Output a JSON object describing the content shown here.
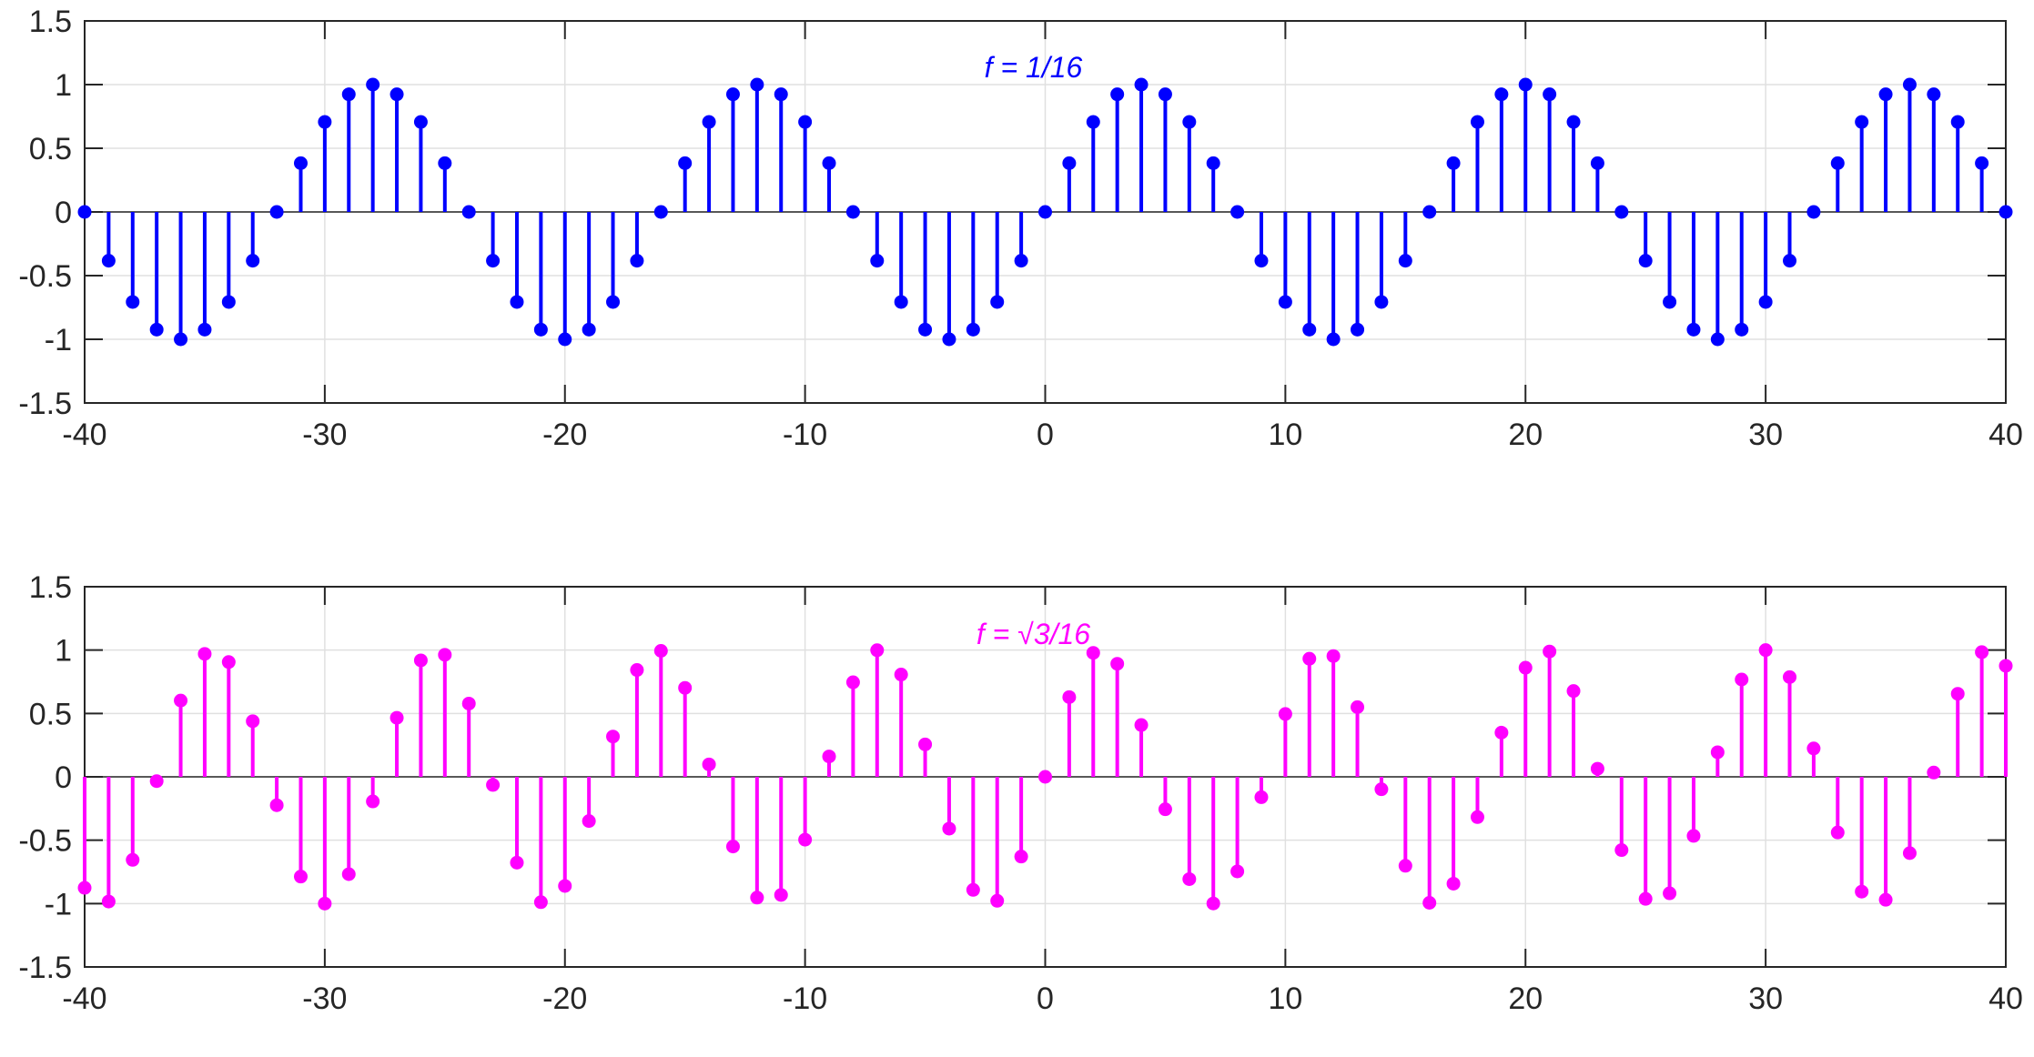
{
  "chart_data": [
    {
      "type": "stem",
      "title": "f = 1/16",
      "color": "#0000ff",
      "xlim": [
        -40,
        40
      ],
      "ylim": [
        -1.5,
        1.5
      ],
      "grid": true,
      "xticks": [
        "-40",
        "-30",
        "-20",
        "-10",
        "0",
        "10",
        "20",
        "30",
        "40"
      ],
      "yticks": [
        "-1.5",
        "-1",
        "-0.5",
        "0",
        "0.5",
        "1",
        "1.5"
      ],
      "x_start": -40,
      "values": [
        0,
        -0.383,
        -0.707,
        -0.924,
        -1,
        -0.924,
        -0.707,
        -0.383,
        0,
        0.383,
        0.707,
        0.924,
        1,
        0.924,
        0.707,
        0.383,
        0,
        -0.383,
        -0.707,
        -0.924,
        -1,
        -0.924,
        -0.707,
        -0.383,
        0,
        0.383,
        0.707,
        0.924,
        1,
        0.924,
        0.707,
        0.383,
        0,
        -0.383,
        -0.707,
        -0.924,
        -1,
        -0.924,
        -0.707,
        -0.383,
        0,
        0.383,
        0.707,
        0.924,
        1,
        0.924,
        0.707,
        0.383,
        0,
        -0.383,
        -0.707,
        -0.924,
        -1,
        -0.924,
        -0.707,
        -0.383,
        0,
        0.383,
        0.707,
        0.924,
        1,
        0.924,
        0.707,
        0.383,
        0,
        -0.383,
        -0.707,
        -0.924,
        -1,
        -0.924,
        -0.707,
        -0.383,
        0,
        0.383,
        0.707,
        0.924,
        1,
        0.924,
        0.707,
        0.383,
        0
      ]
    },
    {
      "type": "stem",
      "title": "f = √3/16",
      "color": "#ff00ff",
      "xlim": [
        -40,
        40
      ],
      "ylim": [
        -1.5,
        1.5
      ],
      "grid": true,
      "xticks": [
        "-40",
        "-30",
        "-20",
        "-10",
        "0",
        "10",
        "20",
        "30",
        "40"
      ],
      "yticks": [
        "-1.5",
        "-1",
        "-0.5",
        "0",
        "0.5",
        "1",
        "1.5"
      ],
      "x_start": -40,
      "values": [
        -0.876,
        -0.984,
        -0.655,
        -0.034,
        0.602,
        0.97,
        0.906,
        0.439,
        -0.224,
        -0.787,
        -1.0,
        -0.768,
        -0.194,
        0.466,
        0.919,
        0.963,
        0.578,
        -0.064,
        -0.677,
        -0.989,
        -0.861,
        -0.349,
        0.318,
        0.843,
        0.994,
        0.702,
        0.098,
        -0.55,
        -0.953,
        -0.932,
        -0.496,
        0.161,
        0.746,
        0.999,
        0.807,
        0.256,
        -0.409,
        -0.892,
        -0.978,
        -0.629,
        0,
        0.629,
        0.978,
        0.892,
        0.409,
        -0.256,
        -0.807,
        -0.999,
        -0.746,
        -0.161,
        0.496,
        0.932,
        0.953,
        0.55,
        -0.098,
        -0.702,
        -0.994,
        -0.843,
        -0.318,
        0.349,
        0.861,
        0.989,
        0.677,
        0.064,
        -0.578,
        -0.963,
        -0.919,
        -0.466,
        0.194,
        0.768,
        1.0,
        0.787,
        0.224,
        -0.439,
        -0.906,
        -0.97,
        -0.602,
        0.034,
        0.655,
        0.984,
        0.876
      ]
    }
  ]
}
